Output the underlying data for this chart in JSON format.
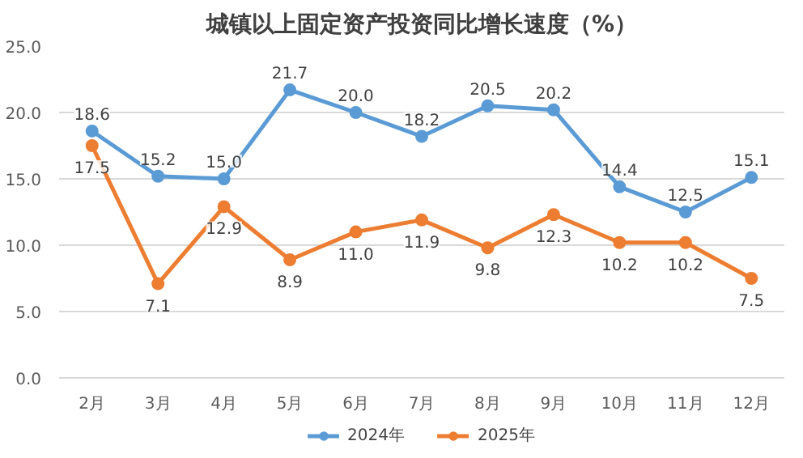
{
  "chart_data": {
    "type": "line",
    "title": "城镇以上固定资产投资同比增长速度（%）",
    "categories": [
      "2月",
      "3月",
      "4月",
      "5月",
      "6月",
      "7月",
      "8月",
      "9月",
      "10月",
      "11月",
      "12月"
    ],
    "series": [
      {
        "name": "2024年",
        "color": "#5b9bd5",
        "values": [
          18.6,
          15.2,
          15.0,
          21.7,
          20.0,
          18.2,
          20.5,
          20.2,
          14.4,
          12.5,
          15.1
        ],
        "value_labels": [
          "18.6",
          "15.2",
          "15.0",
          "21.7",
          "20.0",
          "18.2",
          "20.5",
          "20.2",
          "14.4",
          "12.5",
          "15.1"
        ]
      },
      {
        "name": "2025年",
        "color": "#ed7d31",
        "values": [
          17.5,
          7.1,
          12.9,
          8.9,
          11.0,
          11.9,
          9.8,
          12.3,
          10.2,
          10.2,
          7.5
        ],
        "value_labels": [
          "17.5",
          "7.1",
          "12.9",
          "8.9",
          "11.0",
          "11.9",
          "9.8",
          "12.3",
          "10.2",
          "10.2",
          "7.5"
        ]
      }
    ],
    "ylim": [
      0,
      25
    ],
    "yticks": [
      {
        "value": 0,
        "label": "0.0"
      },
      {
        "value": 5,
        "label": "5.0"
      },
      {
        "value": 10,
        "label": "10.0"
      },
      {
        "value": 15,
        "label": "15.0"
      },
      {
        "value": 20,
        "label": "20.0"
      },
      {
        "value": 25,
        "label": "25.0"
      }
    ],
    "grid": "y",
    "legend": "bottom",
    "marker": "circle",
    "line_style": "solid",
    "data_labels": true
  }
}
